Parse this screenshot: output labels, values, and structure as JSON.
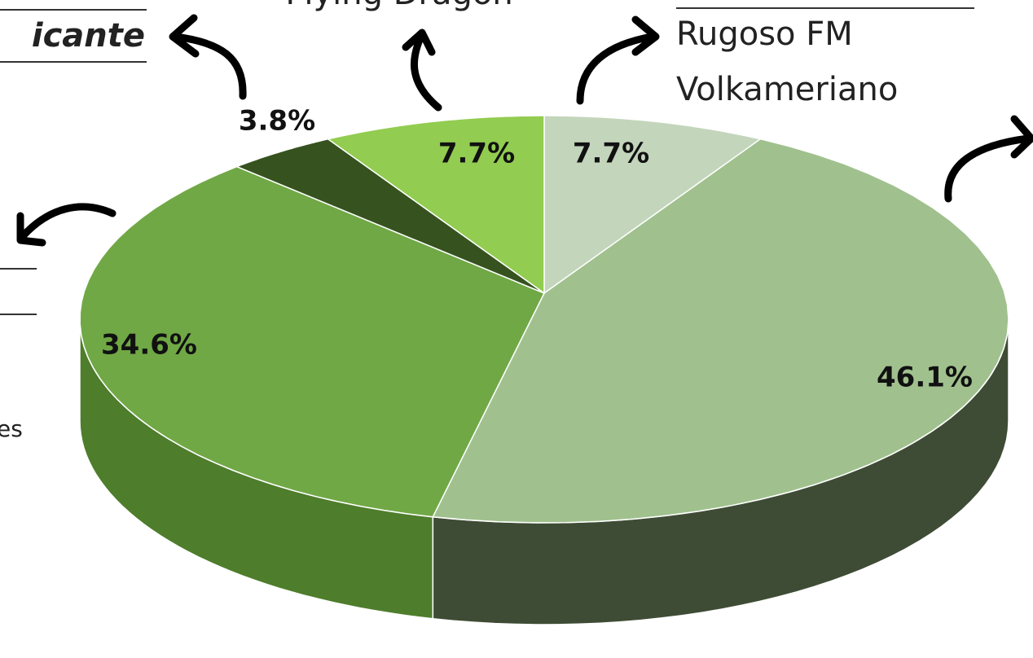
{
  "chart_data": {
    "type": "pie",
    "values": [
      7.7,
      46.1,
      34.6,
      3.8,
      7.7
    ],
    "value_labels": [
      "7.7%",
      "46.1%",
      "34.6%",
      "3.8%",
      "7.7%"
    ],
    "colors": [
      "#c3d5bb",
      "#a0c18e",
      "#70a845",
      "#36531f",
      "#92cc50"
    ],
    "side_colors": [
      "#8fa087",
      "#3f4c35",
      "#4e7d2c",
      "#26391a",
      "#66903a"
    ],
    "annotations": [
      "icante",
      "Flying Dragon",
      "Rugoso FM",
      "Volkameriano",
      "es"
    ]
  }
}
